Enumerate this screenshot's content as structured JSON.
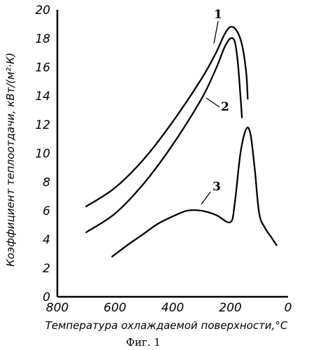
{
  "chart_data": {
    "type": "line",
    "caption": "Фиг. 1",
    "xlabel": "Температура охлаждаемой поверхности,°С",
    "ylabel": "Коэффициент теплоотдачи, кВт/(м²·К)",
    "xlim": [
      800,
      0
    ],
    "ylim": [
      0,
      20
    ],
    "xticks": [
      800,
      600,
      400,
      200,
      0
    ],
    "yticks": [
      0,
      2,
      4,
      6,
      8,
      10,
      12,
      14,
      16,
      18,
      20
    ],
    "grid": false,
    "series": [
      {
        "name": "1",
        "x": [
          700,
          600,
          500,
          400,
          300,
          250,
          220,
          200,
          180,
          160,
          145,
          140
        ],
        "y": [
          6.3,
          7.6,
          9.6,
          12.2,
          15.2,
          17.0,
          18.3,
          18.8,
          18.6,
          17.6,
          15.6,
          13.8
        ]
      },
      {
        "name": "2",
        "x": [
          700,
          600,
          500,
          400,
          300,
          250,
          220,
          200,
          185,
          175,
          165,
          160
        ],
        "y": [
          4.5,
          5.8,
          7.9,
          10.6,
          13.8,
          15.9,
          17.4,
          18.0,
          17.8,
          16.5,
          14.0,
          12.5
        ]
      },
      {
        "name": "3",
        "x": [
          610,
          550,
          500,
          450,
          400,
          350,
          300,
          250,
          200,
          185,
          165,
          145,
          130,
          115,
          100,
          80,
          60,
          40
        ],
        "y": [
          2.8,
          3.7,
          4.4,
          5.1,
          5.6,
          6.0,
          6.0,
          5.7,
          5.2,
          6.5,
          10.0,
          11.7,
          11.3,
          8.8,
          5.8,
          4.8,
          4.2,
          3.6
        ]
      }
    ]
  }
}
